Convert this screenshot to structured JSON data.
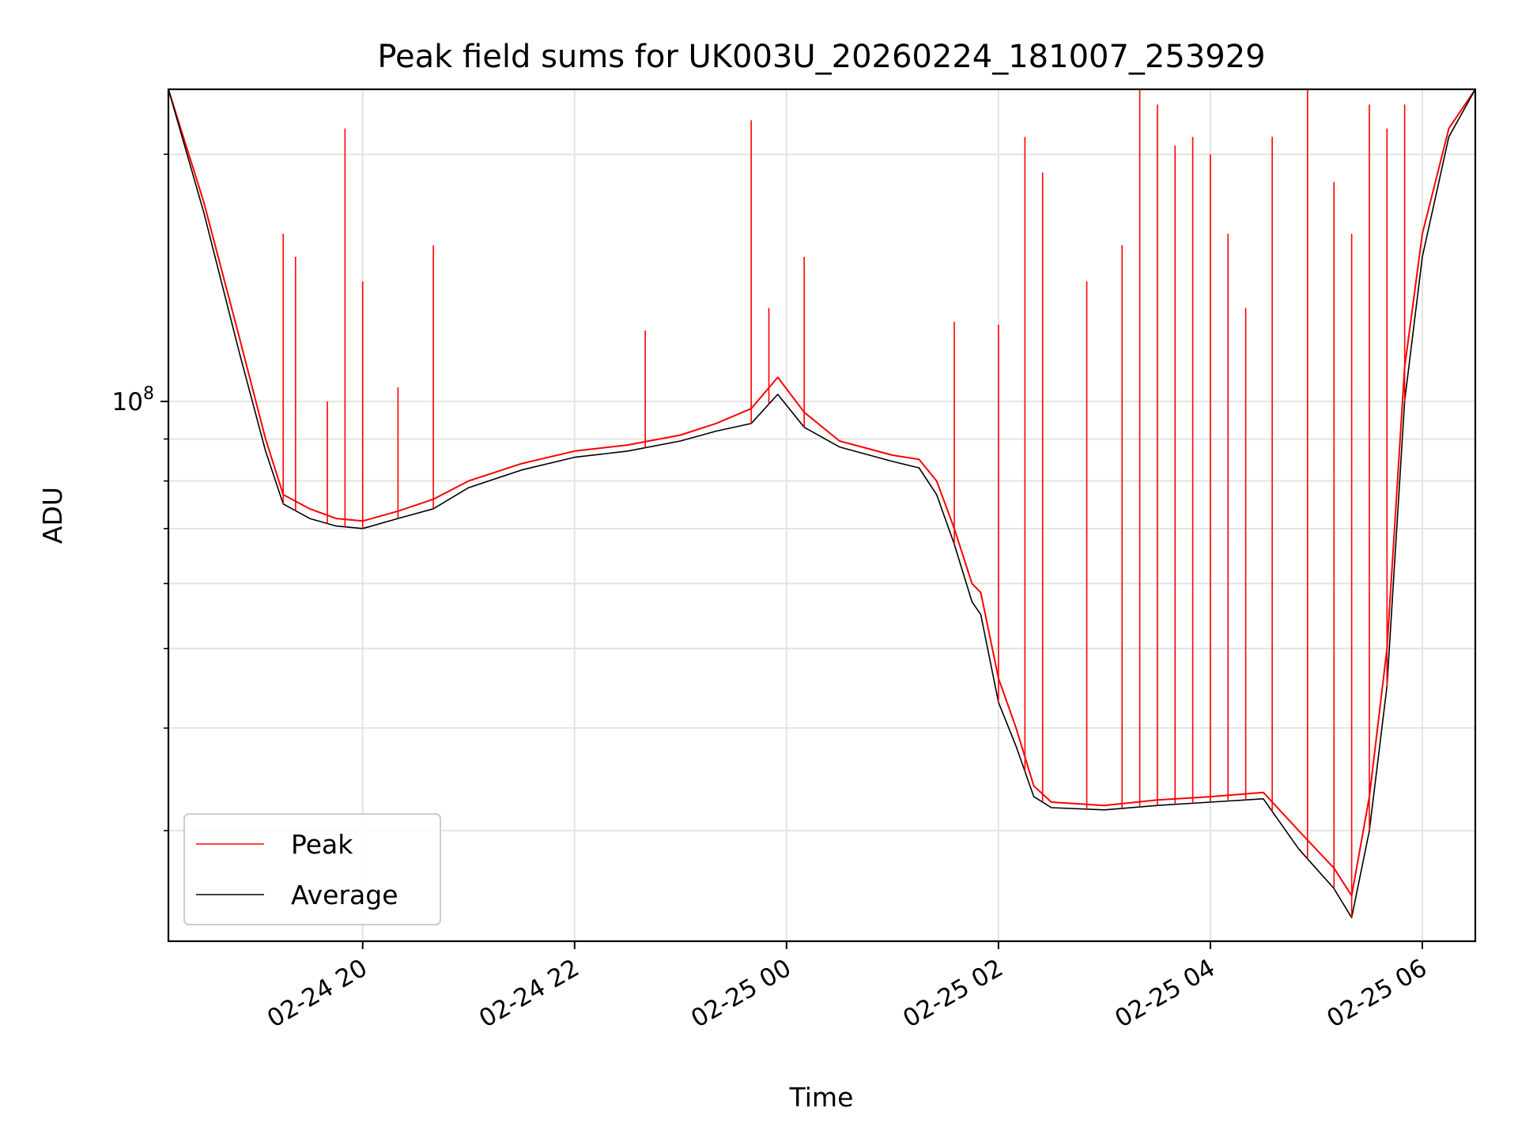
{
  "chart_data": {
    "type": "line",
    "title": "Peak field sums for UK003U_20260224_181007_253929",
    "xlabel": "Time",
    "ylabel": "ADU",
    "yscale": "log",
    "grid": true,
    "legend_placement": "lower-left",
    "x_range": [
      "2026-02-24 18:10",
      "2026-02-25 06:30"
    ],
    "y_range": [
      22000000,
      240000000
    ],
    "x_ticks": [
      {
        "t": "2026-02-24 20:00",
        "label": "02-24 20"
      },
      {
        "t": "2026-02-24 22:00",
        "label": "02-24 22"
      },
      {
        "t": "2026-02-25 00:00",
        "label": "02-25 00"
      },
      {
        "t": "2026-02-25 02:00",
        "label": "02-25 02"
      },
      {
        "t": "2026-02-25 04:00",
        "label": "02-25 04"
      },
      {
        "t": "2026-02-25 06:00",
        "label": "02-25 06"
      }
    ],
    "y_major_ticks": [
      {
        "value": 100000000,
        "label": "10^8"
      }
    ],
    "y_minor_ticks": [
      30000000,
      40000000,
      50000000,
      60000000,
      70000000,
      80000000,
      90000000,
      200000000
    ],
    "series": [
      {
        "name": "Peak",
        "color": "#ff0000",
        "points": [
          [
            "2026-02-24 18:10",
            240000000
          ],
          [
            "2026-02-24 18:30",
            175000000
          ],
          [
            "2026-02-24 18:50",
            120000000
          ],
          [
            "2026-02-24 19:05",
            90000000
          ],
          [
            "2026-02-24 19:15",
            77000000
          ],
          [
            "2026-02-24 19:30",
            74000000
          ],
          [
            "2026-02-24 19:45",
            72000000
          ],
          [
            "2026-02-24 20:00",
            71500000
          ],
          [
            "2026-02-24 20:20",
            73500000
          ],
          [
            "2026-02-24 20:40",
            76000000
          ],
          [
            "2026-02-24 21:00",
            80000000
          ],
          [
            "2026-02-24 21:30",
            84000000
          ],
          [
            "2026-02-24 22:00",
            87000000
          ],
          [
            "2026-02-24 22:30",
            88500000
          ],
          [
            "2026-02-24 23:00",
            91000000
          ],
          [
            "2026-02-24 23:20",
            94000000
          ],
          [
            "2026-02-24 23:40",
            98000000
          ],
          [
            "2026-02-24 23:55",
            107000000
          ],
          [
            "2026-02-25 00:10",
            97000000
          ],
          [
            "2026-02-25 00:30",
            89500000
          ],
          [
            "2026-02-25 01:00",
            86000000
          ],
          [
            "2026-02-25 01:15",
            85000000
          ],
          [
            "2026-02-25 01:25",
            80000000
          ],
          [
            "2026-02-25 01:35",
            70000000
          ],
          [
            "2026-02-25 01:45",
            60000000
          ],
          [
            "2026-02-25 01:50",
            58500000
          ],
          [
            "2026-02-25 02:00",
            46000000
          ],
          [
            "2026-02-25 02:10",
            40000000
          ],
          [
            "2026-02-25 02:20",
            34000000
          ],
          [
            "2026-02-25 02:30",
            32500000
          ],
          [
            "2026-02-25 03:00",
            32200000
          ],
          [
            "2026-02-25 03:30",
            32700000
          ],
          [
            "2026-02-25 04:00",
            33000000
          ],
          [
            "2026-02-25 04:30",
            33400000
          ],
          [
            "2026-02-25 04:50",
            30000000
          ],
          [
            "2026-02-25 05:10",
            27000000
          ],
          [
            "2026-02-25 05:20",
            25000000
          ],
          [
            "2026-02-25 05:30",
            33000000
          ],
          [
            "2026-02-25 05:40",
            50000000
          ],
          [
            "2026-02-25 05:50",
            110000000
          ],
          [
            "2026-02-25 06:00",
            160000000
          ],
          [
            "2026-02-25 06:15",
            215000000
          ],
          [
            "2026-02-25 06:30",
            240000000
          ]
        ]
      },
      {
        "name": "Average",
        "color": "#000000",
        "points": [
          [
            "2026-02-24 18:10",
            240000000
          ],
          [
            "2026-02-24 18:30",
            170000000
          ],
          [
            "2026-02-24 18:50",
            115000000
          ],
          [
            "2026-02-24 19:05",
            87000000
          ],
          [
            "2026-02-24 19:15",
            75000000
          ],
          [
            "2026-02-24 19:30",
            72000000
          ],
          [
            "2026-02-24 19:45",
            70500000
          ],
          [
            "2026-02-24 20:00",
            70000000
          ],
          [
            "2026-02-24 20:20",
            72000000
          ],
          [
            "2026-02-24 20:40",
            74000000
          ],
          [
            "2026-02-24 21:00",
            78500000
          ],
          [
            "2026-02-24 21:30",
            82500000
          ],
          [
            "2026-02-24 22:00",
            85500000
          ],
          [
            "2026-02-24 22:30",
            87000000
          ],
          [
            "2026-02-24 23:00",
            89500000
          ],
          [
            "2026-02-24 23:20",
            92000000
          ],
          [
            "2026-02-24 23:40",
            94000000
          ],
          [
            "2026-02-24 23:55",
            102000000
          ],
          [
            "2026-02-25 00:10",
            93000000
          ],
          [
            "2026-02-25 00:30",
            88000000
          ],
          [
            "2026-02-25 01:00",
            84500000
          ],
          [
            "2026-02-25 01:15",
            83000000
          ],
          [
            "2026-02-25 01:25",
            77000000
          ],
          [
            "2026-02-25 01:35",
            67000000
          ],
          [
            "2026-02-25 01:45",
            57000000
          ],
          [
            "2026-02-25 01:50",
            55000000
          ],
          [
            "2026-02-25 02:00",
            43000000
          ],
          [
            "2026-02-25 02:10",
            38000000
          ],
          [
            "2026-02-25 02:20",
            33000000
          ],
          [
            "2026-02-25 02:30",
            32000000
          ],
          [
            "2026-02-25 03:00",
            31800000
          ],
          [
            "2026-02-25 03:30",
            32200000
          ],
          [
            "2026-02-25 04:00",
            32500000
          ],
          [
            "2026-02-25 04:30",
            32800000
          ],
          [
            "2026-02-25 04:50",
            28500000
          ],
          [
            "2026-02-25 05:10",
            25500000
          ],
          [
            "2026-02-25 05:20",
            23500000
          ],
          [
            "2026-02-25 05:30",
            30000000
          ],
          [
            "2026-02-25 05:40",
            45000000
          ],
          [
            "2026-02-25 05:50",
            100000000
          ],
          [
            "2026-02-25 06:00",
            150000000
          ],
          [
            "2026-02-25 06:15",
            210000000
          ],
          [
            "2026-02-25 06:30",
            240000000
          ]
        ]
      }
    ],
    "peak_spikes": [
      [
        "2026-02-24 19:15",
        160000000
      ],
      [
        "2026-02-24 19:22",
        150000000
      ],
      [
        "2026-02-24 19:40",
        100000000
      ],
      [
        "2026-02-24 19:50",
        215000000
      ],
      [
        "2026-02-24 20:00",
        140000000
      ],
      [
        "2026-02-24 20:20",
        104000000
      ],
      [
        "2026-02-24 20:40",
        155000000
      ],
      [
        "2026-02-24 22:40",
        122000000
      ],
      [
        "2026-02-24 23:40",
        220000000
      ],
      [
        "2026-02-24 23:50",
        130000000
      ],
      [
        "2026-02-25 00:10",
        150000000
      ],
      [
        "2026-02-25 01:35",
        125000000
      ],
      [
        "2026-02-25 02:00",
        124000000
      ],
      [
        "2026-02-25 02:15",
        210000000
      ],
      [
        "2026-02-25 02:25",
        190000000
      ],
      [
        "2026-02-25 02:50",
        140000000
      ],
      [
        "2026-02-25 03:10",
        155000000
      ],
      [
        "2026-02-25 03:20",
        240000000
      ],
      [
        "2026-02-25 03:30",
        230000000
      ],
      [
        "2026-02-25 03:40",
        205000000
      ],
      [
        "2026-02-25 03:50",
        210000000
      ],
      [
        "2026-02-25 04:00",
        200000000
      ],
      [
        "2026-02-25 04:10",
        160000000
      ],
      [
        "2026-02-25 04:20",
        130000000
      ],
      [
        "2026-02-25 04:35",
        210000000
      ],
      [
        "2026-02-25 04:55",
        240000000
      ],
      [
        "2026-02-25 05:10",
        185000000
      ],
      [
        "2026-02-25 05:20",
        160000000
      ],
      [
        "2026-02-25 05:30",
        230000000
      ],
      [
        "2026-02-25 05:40",
        215000000
      ],
      [
        "2026-02-25 05:50",
        230000000
      ]
    ]
  },
  "legend": {
    "peak_label": "Peak",
    "average_label": "Average"
  }
}
